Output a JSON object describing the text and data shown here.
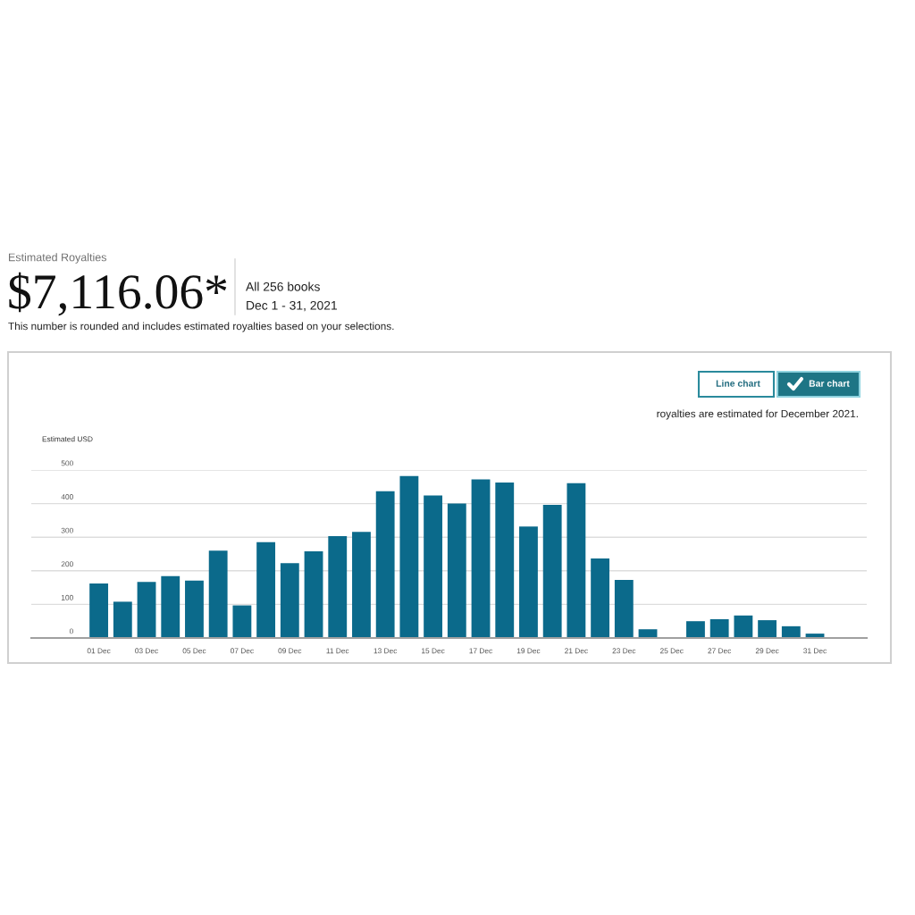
{
  "chart_data": {
    "type": "bar",
    "subtitle": "Estimated Royalties",
    "title": "$7,116.06*",
    "ylabel": "Estimated USD",
    "annotations": [
      "All 256 books",
      "Dec 1 - 31, 2021",
      "This number is rounded and includes estimated royalties based on your selections.",
      "Line chart",
      "Bar chart",
      "royalties are estimated for December 2021."
    ],
    "categories": [
      "01 Dec",
      null,
      "03 Dec",
      null,
      "05 Dec",
      null,
      "07 Dec",
      null,
      "09 Dec",
      null,
      "11 Dec",
      null,
      "13 Dec",
      null,
      "15 Dec",
      null,
      "17 Dec",
      null,
      "19 Dec",
      null,
      "21 Dec",
      null,
      "23 Dec",
      null,
      "25 Dec",
      null,
      "27 Dec",
      null,
      "29 Dec",
      null,
      "31 Dec"
    ],
    "values": [
      162,
      108,
      167,
      184,
      171,
      260,
      97,
      285,
      223,
      258,
      303,
      316,
      437,
      482,
      424,
      400,
      472,
      463,
      332,
      396,
      461,
      237,
      173,
      26,
      null,
      50,
      56,
      67,
      53,
      35,
      13
    ],
    "color": "#0b6a8b",
    "ylim": [
      0,
      500
    ],
    "yticks": [
      0,
      100,
      200,
      300,
      400,
      500
    ],
    "grid": "y"
  }
}
